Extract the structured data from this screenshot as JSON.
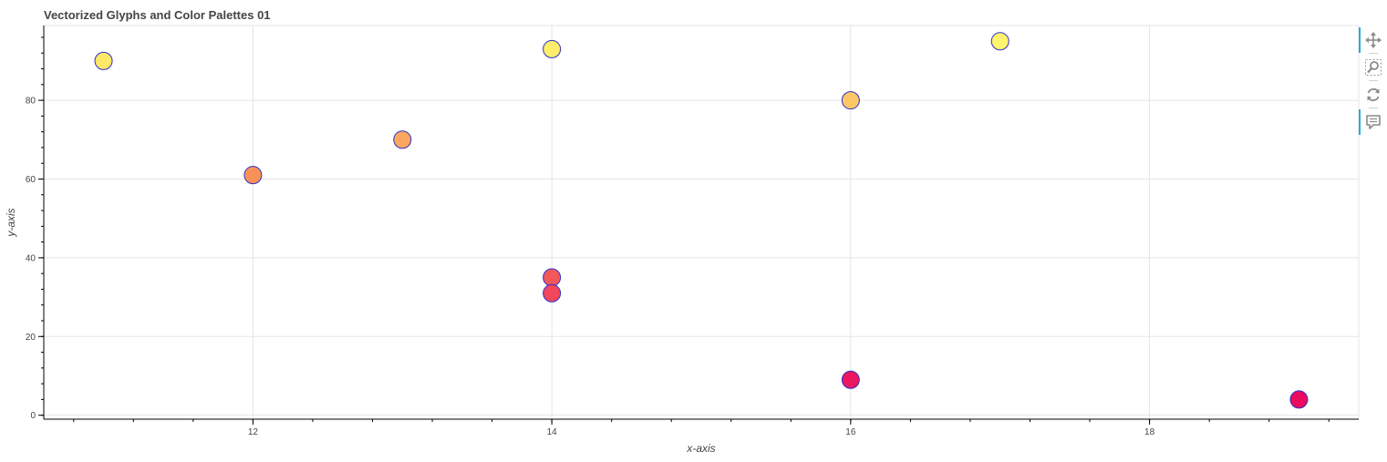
{
  "chart_data": {
    "type": "scatter",
    "title": "Vectorized Glyphs and Color Palettes 01",
    "xlabel": "x-axis",
    "ylabel": "y-axis",
    "xlim": [
      10.6,
      19.4
    ],
    "ylim": [
      -1,
      99
    ],
    "x_ticks": [
      12,
      14,
      16,
      18
    ],
    "y_ticks": [
      0,
      20,
      40,
      60,
      80
    ],
    "grid": true,
    "points": [
      {
        "x": 11,
        "y": 90,
        "color": "#fde868"
      },
      {
        "x": 12,
        "y": 61,
        "color": "#f99258"
      },
      {
        "x": 13,
        "y": 70,
        "color": "#fba760"
      },
      {
        "x": 14,
        "y": 93,
        "color": "#feee6a"
      },
      {
        "x": 14,
        "y": 35,
        "color": "#f4585a"
      },
      {
        "x": 14,
        "y": 31,
        "color": "#f2465c"
      },
      {
        "x": 16,
        "y": 80,
        "color": "#fcc866"
      },
      {
        "x": 16,
        "y": 9,
        "color": "#ec175f"
      },
      {
        "x": 17,
        "y": 95,
        "color": "#fff46d"
      },
      {
        "x": 19,
        "y": 4,
        "color": "#ea0a5e"
      }
    ],
    "marker_outline_color": "#3030c8"
  },
  "toolbar": {
    "tools": [
      {
        "name": "pan-icon",
        "active": true
      },
      {
        "name": "box-zoom-icon",
        "active": false
      },
      {
        "name": "reset-icon",
        "active": false
      },
      {
        "name": "hover-icon",
        "active": true
      }
    ]
  }
}
